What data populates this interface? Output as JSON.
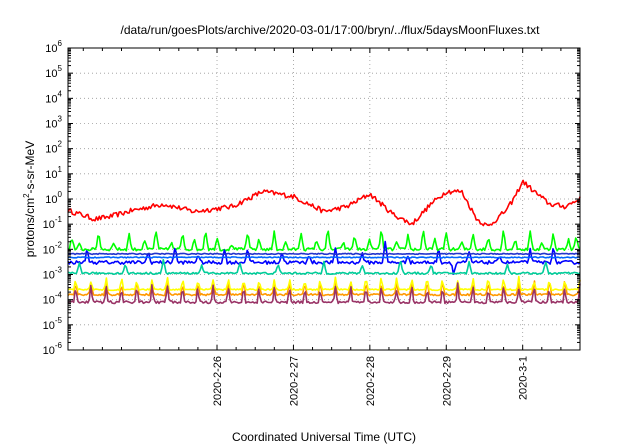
{
  "chart_data": {
    "type": "line",
    "title": "/data/run/goesPlots/archive/2020-03-01/17:00/bryn/../flux/5daysMoonFluxes.txt",
    "xlabel": "Coordinated Universal Time (UTC)",
    "ylabel": "protons/cm²-s-sr-MeV",
    "ylabel_parts": {
      "pre": "protons/cm",
      "sup": "2",
      "post": "-s-sr-MeV"
    },
    "yscale": "log",
    "ylim": [
      1e-06,
      1000000.0
    ],
    "y_ticks": [
      {
        "base": "10",
        "exp": "6"
      },
      {
        "base": "10",
        "exp": "5"
      },
      {
        "base": "10",
        "exp": "4"
      },
      {
        "base": "10",
        "exp": "3"
      },
      {
        "base": "10",
        "exp": "2"
      },
      {
        "base": "10",
        "exp": "1"
      },
      {
        "base": "10",
        "exp": "0"
      },
      {
        "base": "10",
        "exp": "-1"
      },
      {
        "base": "10",
        "exp": "-2"
      },
      {
        "base": "10",
        "exp": "-3"
      },
      {
        "base": "10",
        "exp": "-4"
      },
      {
        "base": "10",
        "exp": "-5"
      },
      {
        "base": "10",
        "exp": "-6"
      }
    ],
    "x_ticks": [
      {
        "label": "2020-2-26",
        "day": 1.0
      },
      {
        "label": "2020-2-27",
        "day": 2.0
      },
      {
        "label": "2020-2-28",
        "day": 3.0
      },
      {
        "label": "2020-2-29",
        "day": 4.0
      },
      {
        "label": "2020-3-1",
        "day": 5.0
      }
    ],
    "xlim_days": [
      -0.95,
      5.75
    ],
    "grid": true,
    "series": [
      {
        "color": "#ff0000",
        "kind": "anchors",
        "anchors": [
          [
            -0.95,
            -0.45
          ],
          [
            -0.6,
            -0.8
          ],
          [
            -0.4,
            -0.7
          ],
          [
            -0.1,
            -0.45
          ],
          [
            0.3,
            -0.2
          ],
          [
            0.7,
            -0.5
          ],
          [
            1.2,
            -0.3
          ],
          [
            1.6,
            0.3
          ],
          [
            2.0,
            0.1
          ],
          [
            2.4,
            -0.5
          ],
          [
            2.7,
            -0.3
          ],
          [
            3.0,
            0.2
          ],
          [
            3.3,
            -0.6
          ],
          [
            3.55,
            -1.0
          ],
          [
            3.8,
            -0.2
          ],
          [
            4.0,
            0.3
          ],
          [
            4.2,
            0.3
          ],
          [
            4.4,
            -0.8
          ],
          [
            4.55,
            -1.1
          ],
          [
            4.8,
            -0.4
          ],
          [
            4.9,
            0.1
          ],
          [
            5.0,
            0.7
          ],
          [
            5.15,
            0.3
          ],
          [
            5.35,
            -0.2
          ],
          [
            5.55,
            -0.3
          ],
          [
            5.75,
            0.0
          ]
        ],
        "noise": 0.1
      },
      {
        "color": "#00ff00",
        "kind": "spiky",
        "base": -2.0,
        "spikes": [
          [
            -0.9,
            -1.5
          ],
          [
            -0.8,
            -1.8
          ],
          [
            -0.55,
            -1.3
          ],
          [
            -0.35,
            -1.7
          ],
          [
            -0.15,
            -1.4
          ],
          [
            0.05,
            -1.6
          ],
          [
            0.2,
            -1.2
          ],
          [
            0.4,
            -1.7
          ],
          [
            0.55,
            -1.3
          ],
          [
            0.7,
            -1.6
          ],
          [
            0.85,
            -1.2
          ],
          [
            1.0,
            -1.5
          ],
          [
            1.2,
            -1.8
          ],
          [
            1.4,
            -1.3
          ],
          [
            1.55,
            -1.6
          ],
          [
            1.75,
            -1.3
          ],
          [
            1.9,
            -1.7
          ],
          [
            2.1,
            -1.3
          ],
          [
            2.3,
            -1.6
          ],
          [
            2.45,
            -1.2
          ],
          [
            2.65,
            -1.7
          ],
          [
            2.8,
            -1.4
          ],
          [
            3.0,
            -1.6
          ],
          [
            3.15,
            -1.2
          ],
          [
            3.35,
            -1.7
          ],
          [
            3.5,
            -1.4
          ],
          [
            3.7,
            -1.2
          ],
          [
            3.85,
            -1.6
          ],
          [
            4.0,
            -1.3
          ],
          [
            4.2,
            -1.7
          ],
          [
            4.35,
            -1.3
          ],
          [
            4.55,
            -1.5
          ],
          [
            4.75,
            -1.2
          ],
          [
            4.9,
            -1.6
          ],
          [
            5.1,
            -1.3
          ],
          [
            5.25,
            -1.7
          ],
          [
            5.4,
            -1.3
          ],
          [
            5.6,
            -1.6
          ],
          [
            5.7,
            -1.4
          ]
        ],
        "noise": 0.06
      },
      {
        "color": "#0000ff",
        "kind": "spiky",
        "base": -2.52,
        "spikes": [
          [
            -0.7,
            -2.0
          ],
          [
            0.1,
            -2.1
          ],
          [
            0.45,
            -1.9
          ],
          [
            0.75,
            -2.2
          ],
          [
            1.1,
            -2.0
          ],
          [
            1.4,
            -1.9
          ],
          [
            1.85,
            -2.1
          ],
          [
            2.2,
            -2.2
          ],
          [
            2.55,
            -2.0
          ],
          [
            2.9,
            -2.1
          ],
          [
            3.2,
            -1.7
          ],
          [
            3.5,
            -2.2
          ],
          [
            3.9,
            -2.0
          ],
          [
            4.1,
            -3.0
          ],
          [
            4.3,
            -2.1
          ],
          [
            4.7,
            -2.2
          ],
          [
            5.1,
            -2.0
          ],
          [
            5.4,
            -1.9
          ]
        ],
        "noise": 0.07
      },
      {
        "color": "#0066ff",
        "kind": "spiky",
        "base": -2.32,
        "spikes": [],
        "noise": 0.02
      },
      {
        "color": "#2233cc",
        "kind": "spiky",
        "base": -2.18,
        "spikes": [],
        "noise": 0.02
      },
      {
        "color": "#00cc99",
        "kind": "spiky",
        "base": -2.95,
        "spikes": [
          [
            -0.8,
            -2.5
          ],
          [
            -0.2,
            -2.6
          ],
          [
            0.3,
            -2.4
          ],
          [
            0.8,
            -2.6
          ],
          [
            1.3,
            -2.5
          ],
          [
            1.8,
            -2.6
          ],
          [
            2.4,
            -2.5
          ],
          [
            2.9,
            -2.6
          ],
          [
            3.4,
            -2.4
          ],
          [
            3.8,
            -2.6
          ],
          [
            4.3,
            -2.5
          ],
          [
            4.8,
            -2.6
          ],
          [
            5.3,
            -2.5
          ]
        ],
        "noise": 0.04
      },
      {
        "color": "#ff9900",
        "kind": "pulse",
        "base": -3.8,
        "peak": -3.15,
        "noise": 0.04
      },
      {
        "color": "#ffff00",
        "kind": "pulse",
        "base": -3.6,
        "peak": -3.05,
        "noise": 0.03
      },
      {
        "color": "#993366",
        "kind": "pulse",
        "base": -4.1,
        "peak": -3.3,
        "noise": 0.05
      }
    ]
  }
}
